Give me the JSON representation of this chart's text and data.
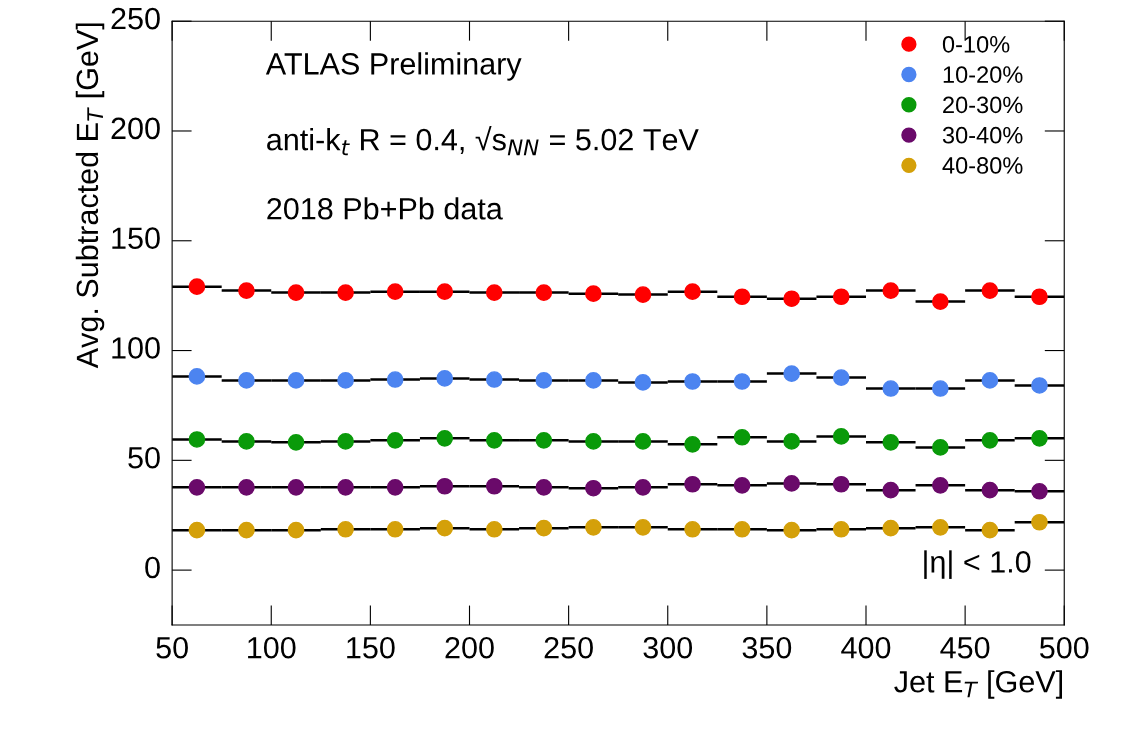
{
  "chart_data": {
    "type": "scatter",
    "xlabel": "Jet E$_{T}$ [GeV]",
    "ylabel": "Avg. Subtracted E$_{T}$ [GeV]",
    "x": [
      62.5,
      87.5,
      112.5,
      137.5,
      162.5,
      187.5,
      212.5,
      237.5,
      262.5,
      287.5,
      312.5,
      337.5,
      362.5,
      387.5,
      412.5,
      437.5,
      462.5,
      487.5
    ],
    "series": [
      {
        "name": "0-10%",
        "color": "#ff0000",
        "values": [
          129.1,
          127.3,
          126.4,
          126.4,
          126.8,
          126.8,
          126.4,
          126.4,
          125.9,
          125.5,
          126.8,
          124.5,
          123.6,
          124.5,
          127.3,
          122.3,
          127.3,
          124.5
        ],
        "xerrors": [
          12.5,
          12.5,
          12.5,
          12.5,
          12.5,
          12.5,
          12.5,
          12.5,
          12.5,
          12.5,
          12.5,
          12.5,
          12.5,
          12.5,
          12.5,
          12.5,
          12.5,
          12.5
        ]
      },
      {
        "name": "10-20%",
        "color": "#4c84f0",
        "values": [
          88.2,
          86.4,
          86.4,
          86.4,
          86.8,
          87.3,
          86.8,
          86.4,
          86.4,
          85.5,
          85.9,
          85.9,
          89.5,
          87.7,
          82.7,
          82.7,
          86.4,
          84.1
        ],
        "xerrors": [
          12.5,
          12.5,
          12.5,
          12.5,
          12.5,
          12.5,
          12.5,
          12.5,
          12.5,
          12.5,
          12.5,
          12.5,
          12.5,
          12.5,
          12.5,
          12.5,
          12.5,
          12.5
        ]
      },
      {
        "name": "20-30%",
        "color": "#0a9a0a",
        "values": [
          59.5,
          58.6,
          58.2,
          58.6,
          59.1,
          60.0,
          59.1,
          59.1,
          58.6,
          58.6,
          57.3,
          60.5,
          58.6,
          60.9,
          58.2,
          55.9,
          59.1,
          60.0
        ],
        "xerrors": [
          12.5,
          12.5,
          12.5,
          12.5,
          12.5,
          12.5,
          12.5,
          12.5,
          12.5,
          12.5,
          12.5,
          12.5,
          12.5,
          12.5,
          12.5,
          12.5,
          12.5,
          12.5
        ]
      },
      {
        "name": "30-40%",
        "color": "#6a0a6a",
        "values": [
          37.7,
          37.7,
          37.7,
          37.7,
          37.7,
          38.2,
          38.2,
          37.7,
          37.3,
          37.7,
          39.1,
          38.6,
          39.5,
          39.1,
          36.4,
          38.6,
          36.4,
          35.9
        ],
        "xerrors": [
          12.5,
          12.5,
          12.5,
          12.5,
          12.5,
          12.5,
          12.5,
          12.5,
          12.5,
          12.5,
          12.5,
          12.5,
          12.5,
          12.5,
          12.5,
          12.5,
          12.5,
          12.5
        ]
      },
      {
        "name": "40-80%",
        "color": "#d4a00a",
        "values": [
          18.2,
          18.2,
          18.2,
          18.6,
          18.6,
          19.1,
          18.6,
          19.1,
          19.5,
          19.5,
          18.6,
          18.6,
          18.2,
          18.6,
          19.1,
          19.5,
          18.2,
          21.8
        ],
        "xerrors": [
          12.5,
          12.5,
          12.5,
          12.5,
          12.5,
          12.5,
          12.5,
          12.5,
          12.5,
          12.5,
          12.5,
          12.5,
          12.5,
          12.5,
          12.5,
          12.5,
          12.5,
          12.5
        ]
      }
    ],
    "xlim": [
      50,
      500
    ],
    "xticks": [
      50,
      100,
      150,
      200,
      250,
      300,
      350,
      400,
      450,
      500
    ],
    "ylim": [
      -25,
      250
    ],
    "yticks": [
      0,
      50,
      100,
      150,
      200,
      250
    ],
    "annotations": [
      "ATLAS Preliminary",
      "anti-k$_{t}$ R = 0.4, √s$_{NN}$ = 5.02 TeV",
      "2018 Pb+Pb data",
      "|η| < 1.0"
    ],
    "legend": "top right",
    "marker": "circle",
    "grid": false
  }
}
